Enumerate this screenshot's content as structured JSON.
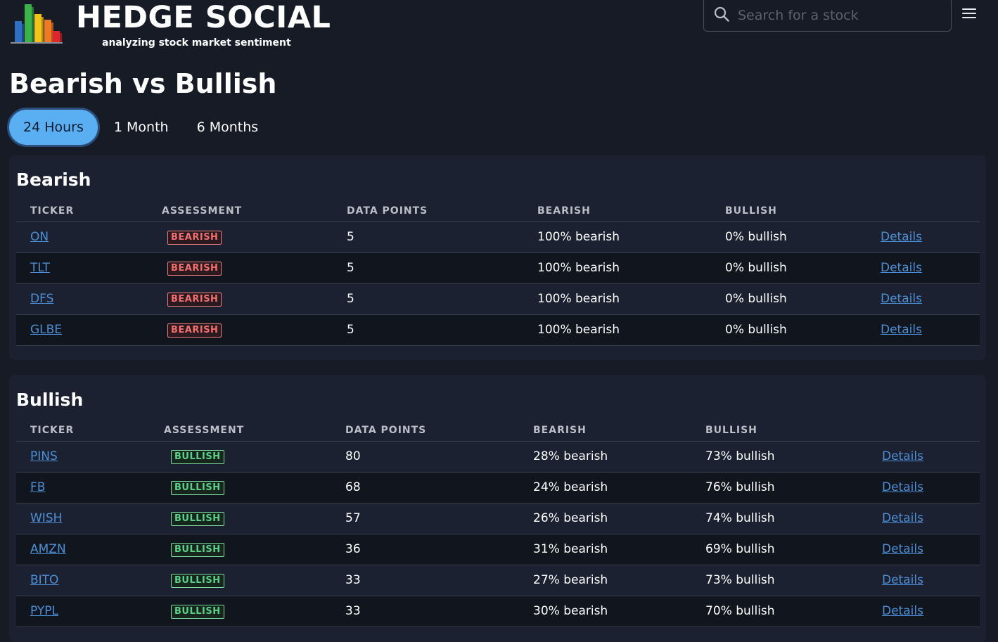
{
  "brand": {
    "title": "HEDGE SOCIAL",
    "subtitle": "analyzing stock market sentiment"
  },
  "search": {
    "placeholder": "Search for a stock",
    "value": ""
  },
  "page_title": "Bearish vs Bullish",
  "tabs": [
    {
      "label": "24 Hours",
      "active": true
    },
    {
      "label": "1 Month",
      "active": false
    },
    {
      "label": "6 Months",
      "active": false
    }
  ],
  "bearish": {
    "title": "Bearish",
    "headers": [
      "TICKER",
      "ASSESSMENT",
      "DATA POINTS",
      "BEARISH",
      "BULLISH",
      ""
    ],
    "rows": [
      {
        "ticker": "ON",
        "assessment": "BEARISH",
        "points": "5",
        "bearish": "100% bearish",
        "bullish": "0% bullish",
        "details": "Details"
      },
      {
        "ticker": "TLT",
        "assessment": "BEARISH",
        "points": "5",
        "bearish": "100% bearish",
        "bullish": "0% bullish",
        "details": "Details"
      },
      {
        "ticker": "DFS",
        "assessment": "BEARISH",
        "points": "5",
        "bearish": "100% bearish",
        "bullish": "0% bullish",
        "details": "Details"
      },
      {
        "ticker": "GLBE",
        "assessment": "BEARISH",
        "points": "5",
        "bearish": "100% bearish",
        "bullish": "0% bullish",
        "details": "Details"
      }
    ]
  },
  "bullish": {
    "title": "Bullish",
    "headers": [
      "TICKER",
      "ASSESSMENT",
      "DATA POINTS",
      "BEARISH",
      "BULLISH",
      ""
    ],
    "rows": [
      {
        "ticker": "PINS",
        "assessment": "BULLISH",
        "points": "80",
        "bearish": "28% bearish",
        "bullish": "73% bullish",
        "details": "Details"
      },
      {
        "ticker": "FB",
        "assessment": "BULLISH",
        "points": "68",
        "bearish": "24% bearish",
        "bullish": "76% bullish",
        "details": "Details"
      },
      {
        "ticker": "WISH",
        "assessment": "BULLISH",
        "points": "57",
        "bearish": "26% bearish",
        "bullish": "74% bullish",
        "details": "Details"
      },
      {
        "ticker": "AMZN",
        "assessment": "BULLISH",
        "points": "36",
        "bearish": "31% bearish",
        "bullish": "69% bullish",
        "details": "Details"
      },
      {
        "ticker": "BITO",
        "assessment": "BULLISH",
        "points": "33",
        "bearish": "27% bearish",
        "bullish": "73% bullish",
        "details": "Details"
      },
      {
        "ticker": "PYPL",
        "assessment": "BULLISH",
        "points": "33",
        "bearish": "30% bearish",
        "bullish": "70% bullish",
        "details": "Details"
      }
    ]
  },
  "colors": {
    "background": "#161b25",
    "card": "#1b2130",
    "accent": "#5aaef2",
    "link": "#4d8fd6",
    "bearish": "#f26d6d",
    "bullish": "#5ad08a"
  }
}
